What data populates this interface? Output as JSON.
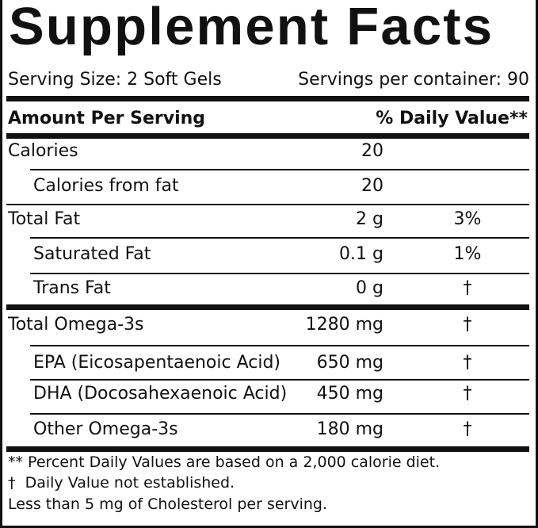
{
  "header": {
    "title": "Supplement Facts",
    "serving_size": "Serving Size: 2 Soft Gels",
    "servings_per_container": "Servings per container: 90"
  },
  "table": {
    "columns": [
      "Amount Per Serving",
      "% Daily Value**"
    ],
    "rows": [
      {
        "name": "Calories",
        "amount": "20"
      },
      {
        "name": "Calories from fat",
        "amount": "20"
      },
      {
        "name": "Total Fat",
        "amount": "2 g",
        "dv": "3%"
      },
      {
        "name": "Saturated Fat",
        "amount": "0.1 g",
        "dv": "1%"
      },
      {
        "name": "Trans Fat",
        "amount": "0 g",
        "dv": "†"
      },
      {
        "name": "Total Omega-3s",
        "amount": "1280 mg",
        "dv": "†"
      },
      {
        "name": "EPA (Eicosapentaenoic Acid)",
        "amount": "650 mg",
        "dv": "†"
      },
      {
        "name": "DHA (Docosahexaenoic Acid)",
        "amount": "450 mg",
        "dv": "†"
      },
      {
        "name": "Other Omega-3s",
        "amount": "180 mg",
        "dv": "†"
      }
    ]
  },
  "footnotes": [
    "** Percent Daily Values are based on a 2,000 calorie diet.",
    "†  Daily Value not established.",
    "Less than 5 mg of Cholesterol per serving."
  ]
}
